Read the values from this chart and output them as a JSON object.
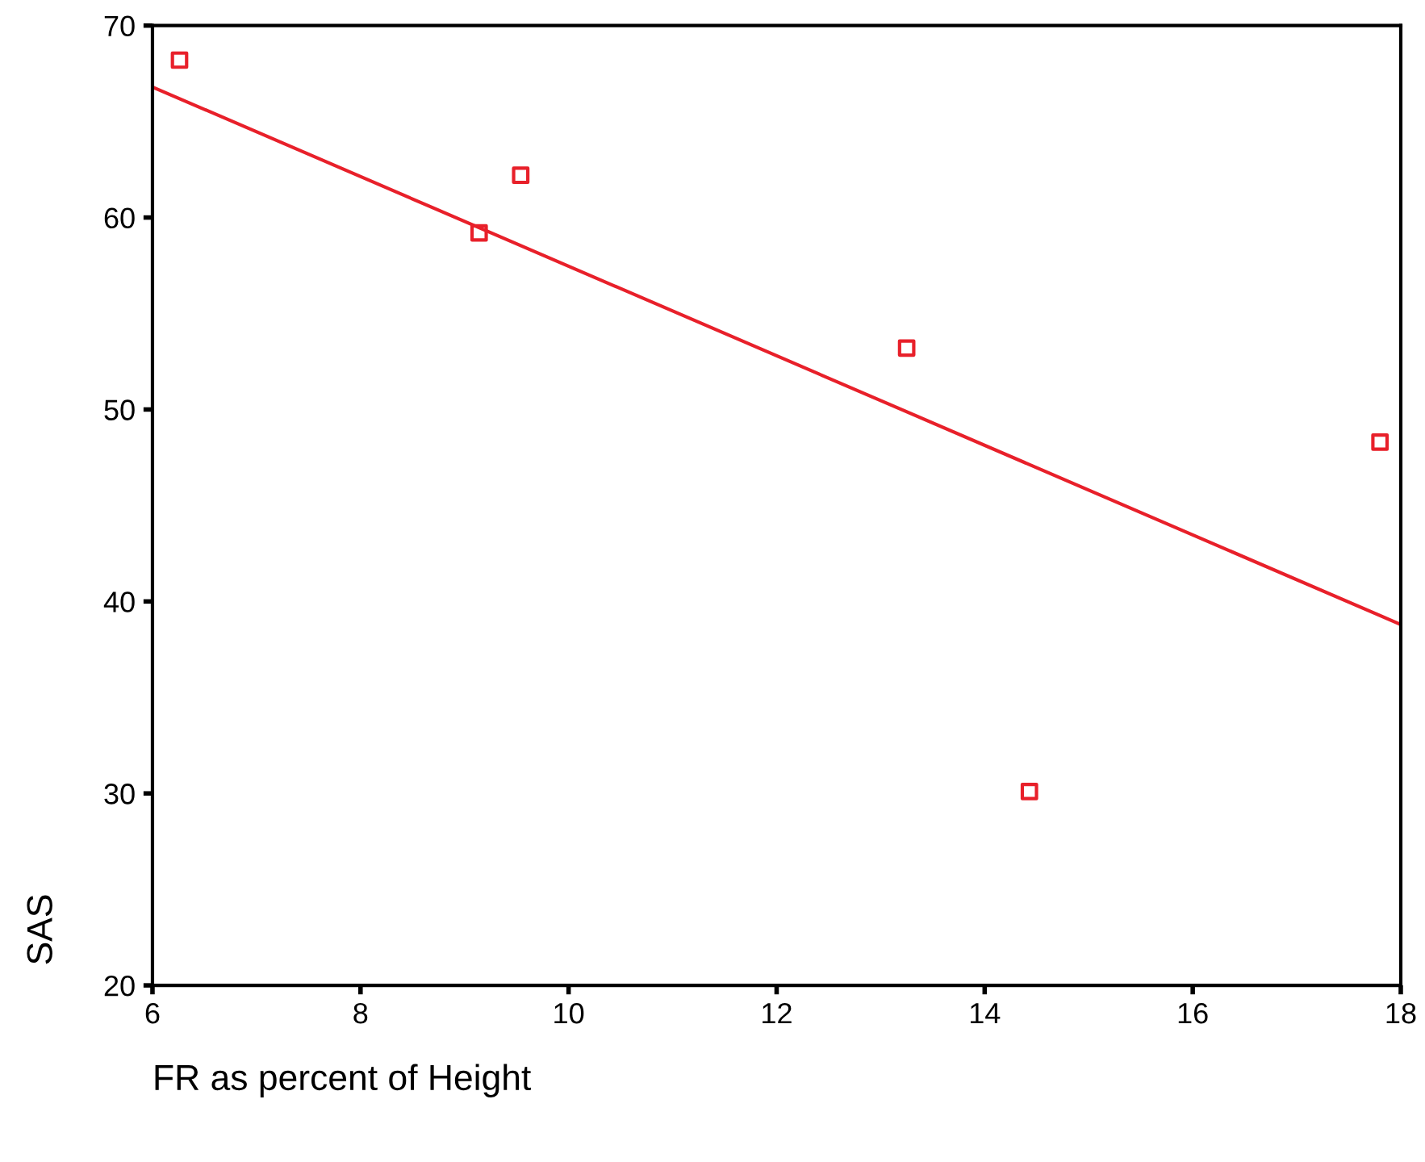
{
  "chart_data": {
    "type": "scatter",
    "xlabel": "FR as percent of Height",
    "ylabel": "SAS",
    "xlim": [
      6,
      18
    ],
    "ylim": [
      20,
      70
    ],
    "xticks": [
      6,
      8,
      10,
      12,
      14,
      16,
      18
    ],
    "yticks": [
      20,
      30,
      40,
      50,
      60,
      70
    ],
    "grid": false,
    "series": [
      {
        "marker": "square",
        "color": "#e8202a",
        "x": [
          6.26,
          9.14,
          9.54,
          13.25,
          14.43,
          17.8
        ],
        "values": [
          68.2,
          59.2,
          62.2,
          53.2,
          30.1,
          48.3
        ]
      },
      {
        "type": "line",
        "marker": "none",
        "color": "#e8202a",
        "x": [
          6,
          18
        ],
        "values": [
          66.8,
          38.8
        ]
      }
    ]
  }
}
